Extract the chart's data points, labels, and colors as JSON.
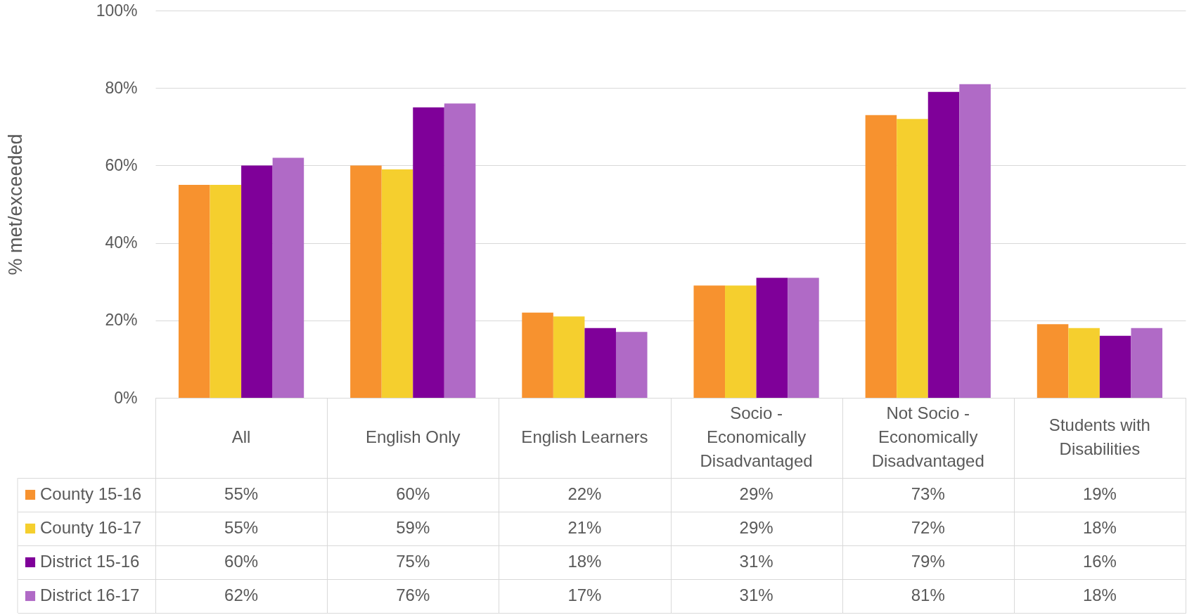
{
  "chart_data": {
    "type": "bar",
    "ylabel": "% met/exceeded",
    "categories": [
      "All",
      "English Only",
      "English Learners",
      "Socio - Economically Disadvantaged",
      "Not Socio - Economically Disadvantaged",
      "Students with Disabilities"
    ],
    "series": [
      {
        "name": "County 15-16",
        "color": "#f7922f",
        "values": [
          55,
          60,
          22,
          29,
          73,
          19
        ],
        "value_labels": [
          "55%",
          "60%",
          "22%",
          "29%",
          "73%",
          "19%"
        ]
      },
      {
        "name": "County 16-17",
        "color": "#f5cf2e",
        "values": [
          55,
          59,
          21,
          29,
          72,
          18
        ],
        "value_labels": [
          "55%",
          "59%",
          "21%",
          "29%",
          "72%",
          "18%"
        ]
      },
      {
        "name": "District 15-16",
        "color": "#7f0099",
        "values": [
          60,
          75,
          18,
          31,
          79,
          16
        ],
        "value_labels": [
          "60%",
          "75%",
          "18%",
          "31%",
          "79%",
          "16%"
        ]
      },
      {
        "name": "District 16-17",
        "color": "#b06ac6",
        "values": [
          62,
          76,
          17,
          31,
          81,
          18
        ],
        "value_labels": [
          "62%",
          "76%",
          "17%",
          "31%",
          "81%",
          "18%"
        ]
      }
    ],
    "ylim": [
      0,
      100
    ],
    "yticks": [
      {
        "value": 0,
        "label": "0%"
      },
      {
        "value": 20,
        "label": "20%"
      },
      {
        "value": 40,
        "label": "40%"
      },
      {
        "value": 60,
        "label": "60%"
      },
      {
        "value": 80,
        "label": "80%"
      },
      {
        "value": 100,
        "label": "100%"
      }
    ],
    "grid": "y",
    "legend": "bottom"
  }
}
